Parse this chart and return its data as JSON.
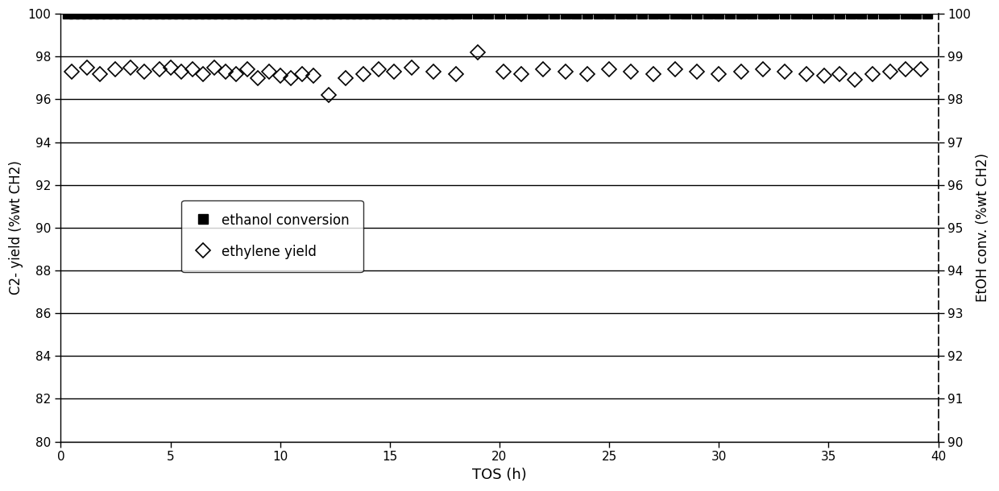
{
  "ethanol_conv_x": [
    0.3,
    0.6,
    0.9,
    1.2,
    1.5,
    1.8,
    2.1,
    2.4,
    2.7,
    3.0,
    3.3,
    3.6,
    3.9,
    4.2,
    4.5,
    4.8,
    5.1,
    5.4,
    5.7,
    6.0,
    6.3,
    6.6,
    6.9,
    7.2,
    7.5,
    7.8,
    8.1,
    8.4,
    8.7,
    9.0,
    9.3,
    9.6,
    9.9,
    10.2,
    10.5,
    10.8,
    11.1,
    11.4,
    11.7,
    12.0,
    12.3,
    12.6,
    12.9,
    13.2,
    13.5,
    13.8,
    14.1,
    14.4,
    14.7,
    15.0,
    15.3,
    15.6,
    15.9,
    16.2,
    16.5,
    16.8,
    17.1,
    17.4,
    17.7,
    18.0,
    18.5,
    19.0,
    19.5,
    20.0,
    20.5,
    21.0,
    21.5,
    22.0,
    22.5,
    23.0,
    23.5,
    24.0,
    24.5,
    25.0,
    25.5,
    26.0,
    26.5,
    27.0,
    27.5,
    28.0,
    28.5,
    29.0,
    29.5,
    30.0,
    30.5,
    31.0,
    31.5,
    32.0,
    32.5,
    33.0,
    33.5,
    34.0,
    34.5,
    35.0,
    35.5,
    36.0,
    36.5,
    37.0,
    37.5,
    38.0,
    38.5,
    39.0,
    39.5
  ],
  "ethanol_conv_y": [
    100,
    100,
    100,
    100,
    100,
    100,
    100,
    100,
    100,
    100,
    100,
    100,
    100,
    100,
    100,
    100,
    100,
    100,
    100,
    100,
    100,
    100,
    100,
    100,
    100,
    100,
    100,
    100,
    100,
    100,
    100,
    100,
    100,
    100,
    100,
    100,
    100,
    100,
    100,
    100,
    100,
    100,
    100,
    100,
    100,
    100,
    100,
    100,
    100,
    100,
    100,
    100,
    100,
    100,
    100,
    100,
    100,
    100,
    100,
    100,
    100,
    100,
    100,
    100,
    100,
    100,
    100,
    100,
    100,
    100,
    100,
    100,
    100,
    100,
    100,
    100,
    100,
    100,
    100,
    100,
    100,
    100,
    100,
    100,
    100,
    100,
    100,
    100,
    100,
    100,
    100,
    100,
    100,
    100,
    100,
    100,
    100,
    100,
    100,
    100,
    100,
    100,
    100
  ],
  "ethylene_yield_x": [
    0.5,
    1.2,
    1.8,
    2.5,
    3.2,
    3.8,
    4.5,
    5.0,
    5.5,
    6.0,
    6.5,
    7.0,
    7.5,
    8.0,
    8.5,
    9.0,
    9.5,
    10.0,
    10.5,
    11.0,
    11.5,
    12.2,
    13.0,
    13.8,
    14.5,
    15.2,
    16.0,
    17.0,
    18.0,
    19.0,
    20.2,
    21.0,
    22.0,
    23.0,
    24.0,
    25.0,
    26.0,
    27.0,
    28.0,
    29.0,
    30.0,
    31.0,
    32.0,
    33.0,
    34.0,
    34.8,
    35.5,
    36.2,
    37.0,
    37.8,
    38.5,
    39.2
  ],
  "ethylene_yield_y": [
    97.3,
    97.5,
    97.2,
    97.4,
    97.5,
    97.3,
    97.4,
    97.5,
    97.3,
    97.4,
    97.2,
    97.5,
    97.3,
    97.2,
    97.4,
    97.0,
    97.3,
    97.1,
    97.0,
    97.2,
    97.1,
    96.2,
    97.0,
    97.2,
    97.4,
    97.3,
    97.5,
    97.3,
    97.2,
    98.2,
    97.3,
    97.2,
    97.4,
    97.3,
    97.2,
    97.4,
    97.3,
    97.2,
    97.4,
    97.3,
    97.2,
    97.3,
    97.4,
    97.3,
    97.2,
    97.1,
    97.2,
    96.9,
    97.2,
    97.3,
    97.4,
    97.4
  ],
  "xlim": [
    0,
    40
  ],
  "ylim_left": [
    80,
    100
  ],
  "ylim_right": [
    90,
    100
  ],
  "yticks_left": [
    80,
    82,
    84,
    86,
    88,
    90,
    92,
    94,
    96,
    98,
    100
  ],
  "yticks_right": [
    90,
    91,
    92,
    93,
    94,
    95,
    96,
    97,
    98,
    99,
    100
  ],
  "xticks": [
    0,
    5,
    10,
    15,
    20,
    25,
    30,
    35,
    40
  ],
  "xlabel": "TOS (h)",
  "ylabel_left": "C2- yield (%wt CH2)",
  "ylabel_right": "EtOH conv. (%wt CH2)",
  "legend_ethanol": "ethanol conversion",
  "legend_ethylene": "ethylene yield",
  "background_color": "#ffffff"
}
